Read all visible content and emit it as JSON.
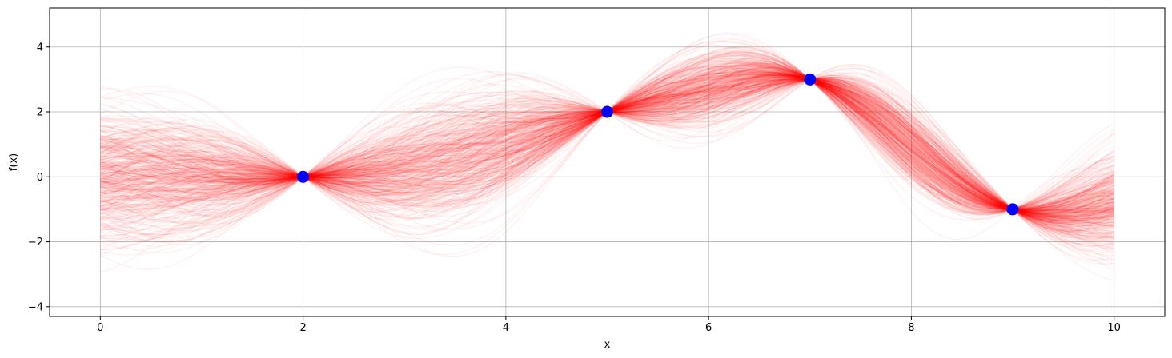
{
  "chart_data": {
    "type": "line",
    "title": "",
    "xlabel": "x",
    "ylabel": "f(x)",
    "xlim": [
      -0.5,
      10.5
    ],
    "ylim": [
      -4.3,
      5.2
    ],
    "xticks": [
      0,
      2,
      4,
      6,
      8,
      10
    ],
    "yticks": [
      -4,
      -2,
      0,
      2,
      4
    ],
    "grid": true,
    "sample_color": "#ff0000",
    "sample_opacity": 0.06,
    "sample_count": 400,
    "sample_x_range": [
      0,
      10
    ],
    "observed_points": {
      "color": "#0000ff",
      "x": [
        2,
        5,
        7,
        9
      ],
      "y": [
        0,
        2,
        3,
        -1
      ]
    }
  }
}
